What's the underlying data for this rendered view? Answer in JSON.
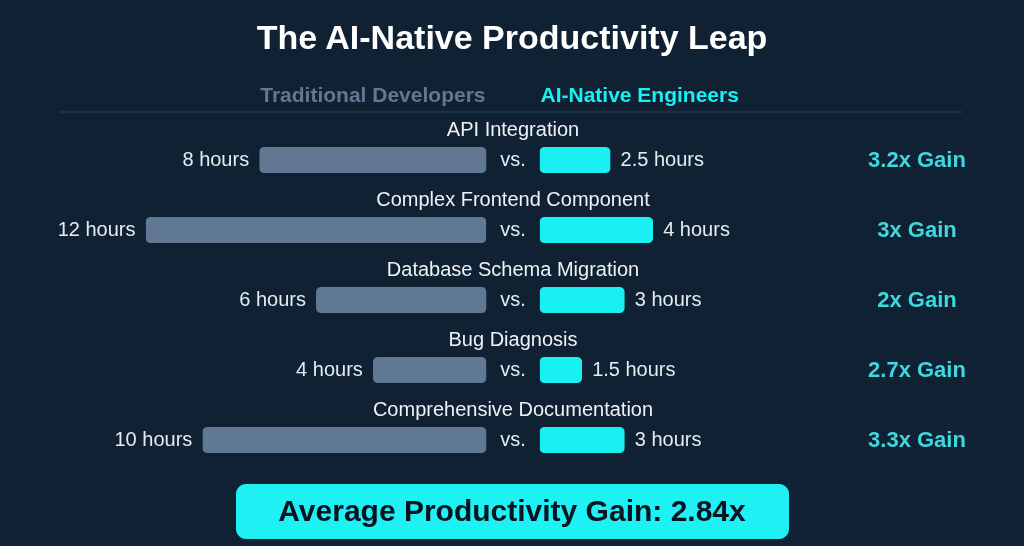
{
  "chart_data": [
    {
      "type": "bar",
      "orientation": "horizontal",
      "title": "The AI-Native Productivity Leap",
      "categories": [
        "API Integration",
        "Complex Frontend Component",
        "Database Schema Migration",
        "Bug Diagnosis",
        "Comprehensive Documentation"
      ],
      "series": [
        {
          "name": "Traditional Developers",
          "color": "#617892",
          "values": [
            8,
            12,
            6,
            4,
            10
          ],
          "value_labels": [
            "8 hours",
            "12 hours",
            "6 hours",
            "4 hours",
            "10 hours"
          ]
        }
      ],
      "legend": "top",
      "tick_labels": "y",
      "annotations": [
        "vs.",
        "vs.",
        "vs.",
        "vs.",
        "vs."
      ]
    },
    {
      "type": "bar",
      "orientation": "horizontal",
      "categories": [
        null,
        null,
        null,
        null,
        null
      ],
      "series": [
        {
          "name": "AI-Native Engineers",
          "color": "#18f0f2",
          "values": [
            2.5,
            4,
            3,
            1.5,
            3
          ],
          "value_labels": [
            "2.5 hours",
            "4 hours",
            "3 hours",
            "1.5 hours",
            "3 hours"
          ]
        }
      ],
      "legend": "top",
      "tick_labels": false,
      "annotations": [
        "3.2x Gain",
        "3x Gain",
        "2x Gain",
        "2.7x Gain",
        "3.3x Gain"
      ]
    },
    {
      "type": "other",
      "annotations": [
        "Average Productivity Gain: 2.84x"
      ]
    }
  ]
}
